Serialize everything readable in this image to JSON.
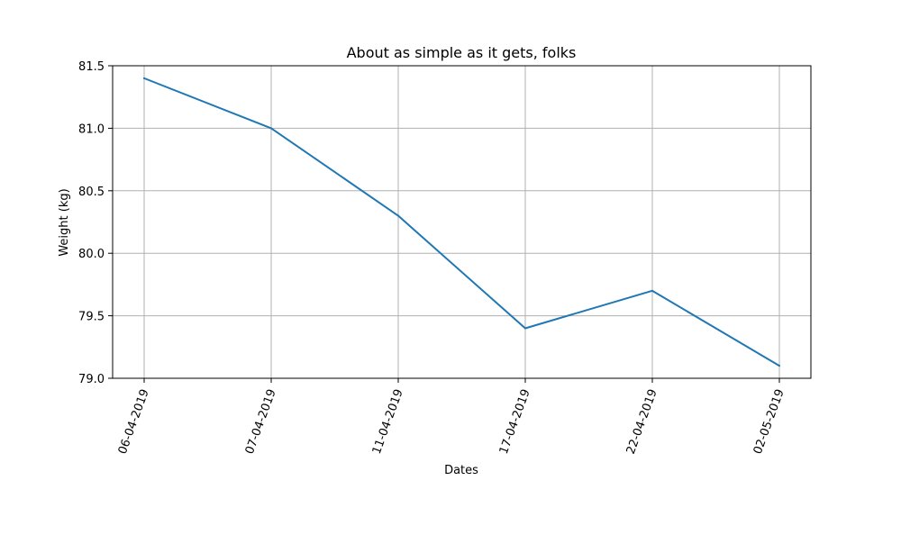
{
  "chart_data": {
    "type": "line",
    "title": "About as simple as it gets, folks",
    "xlabel": "Dates",
    "ylabel": "Weight (kg)",
    "categories": [
      "06-04-2019",
      "07-04-2019",
      "11-04-2019",
      "17-04-2019",
      "22-04-2019",
      "02-05-2019"
    ],
    "series": [
      {
        "values": [
          81.4,
          81.0,
          80.3,
          79.4,
          79.7,
          79.1
        ],
        "color": "#1f77b4"
      }
    ],
    "ylim": [
      79.0,
      81.5
    ],
    "yticks": [
      "79.0",
      "79.5",
      "80.0",
      "80.5",
      "81.0",
      "81.5"
    ],
    "grid": true,
    "legend": "none",
    "colors": {
      "grid": "#b0b0b0",
      "axes": "#000000",
      "line": "#1f77b4"
    }
  }
}
